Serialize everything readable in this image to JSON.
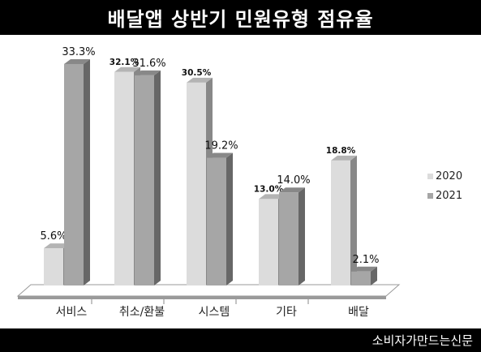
{
  "header": {
    "title": "배달앱 상반기 민원유형 점유율"
  },
  "footer": {
    "source": "소비자가만드는신문"
  },
  "chart_data": {
    "type": "bar",
    "categories": [
      "서비스",
      "취소/환불",
      "시스템",
      "기타",
      "배달"
    ],
    "series": [
      {
        "name": "2020",
        "values": [
          5.6,
          32.1,
          30.5,
          13.0,
          18.8
        ],
        "labels": [
          "5.6%",
          "32.1%",
          "30.5%",
          "13.0%",
          "18.8%"
        ],
        "color": "#dcdcdc"
      },
      {
        "name": "2021",
        "values": [
          33.3,
          31.6,
          19.2,
          14.0,
          2.1
        ],
        "labels": [
          "33.3%",
          "31.6%",
          "19.2%",
          "14.0%",
          "2.1%"
        ],
        "color": "#a6a6a6"
      }
    ],
    "ylim": [
      0,
      35
    ],
    "legend": "right",
    "grid": false
  }
}
